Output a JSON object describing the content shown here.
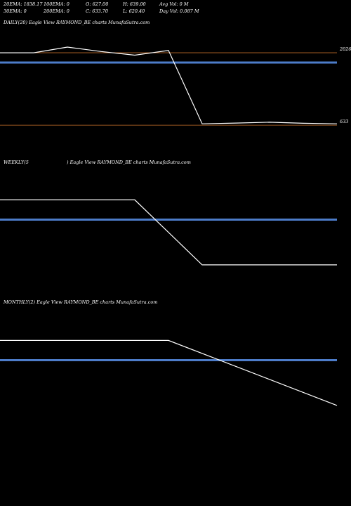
{
  "stats": {
    "row1": [
      "20EMA: 1838.17",
      "100EMA: 0",
      "O: 627.00",
      "H: 639.00",
      "Avg Vol: 0  M"
    ],
    "row2": [
      "30EMA: 0",
      "200EMA: 0",
      "C: 633.70",
      "L: 620.40",
      "Day Vol: 0.087 M"
    ]
  },
  "colors": {
    "price": "#ffffff",
    "ema": "#4d7cc9",
    "level": "#c8702a",
    "background": "#000000"
  },
  "chart_data": [
    {
      "type": "line",
      "title": "DAILY(20) Eagle  View  RAYMOND_BE charts MunafaSutra.com",
      "ylim": [
        0,
        2500
      ],
      "x": [
        0,
        1,
        2,
        3,
        4,
        5,
        6,
        7,
        8,
        9,
        10
      ],
      "series": [
        {
          "values": [
            2026,
            2026,
            2135,
            2050,
            1980,
            2070,
            660,
            675,
            690,
            670,
            660
          ]
        },
        {
          "values": [
            1838,
            1838,
            1838,
            1838,
            1838,
            1838,
            1838,
            1838,
            1838,
            1838,
            1838
          ]
        }
      ],
      "levels": [
        {
          "label": "2026",
          "value": 2026
        },
        {
          "label": "633",
          "value": 633
        }
      ]
    },
    {
      "type": "line",
      "title_left": "WEEKLY(5",
      "title_right": ") Eagle  View  RAYMOND_BE charts MunafaSutra.com",
      "ylim": [
        0,
        2500
      ],
      "x": [
        0,
        1,
        2,
        3,
        4,
        5
      ],
      "series": [
        {
          "values": [
            1900,
            1900,
            1900,
            650,
            650,
            650
          ]
        },
        {
          "values": [
            1520,
            1520,
            1520,
            1520,
            1520,
            1520
          ]
        }
      ]
    },
    {
      "type": "line",
      "title": "MONTHLY(2) Eagle  View  RAYMOND_BE charts MunafaSutra.com",
      "ylim": [
        0,
        2500
      ],
      "x": [
        0,
        1,
        2
      ],
      "series": [
        {
          "values": [
            1900,
            1900,
            650
          ]
        },
        {
          "values": [
            1520,
            1520,
            1520
          ]
        }
      ]
    }
  ]
}
